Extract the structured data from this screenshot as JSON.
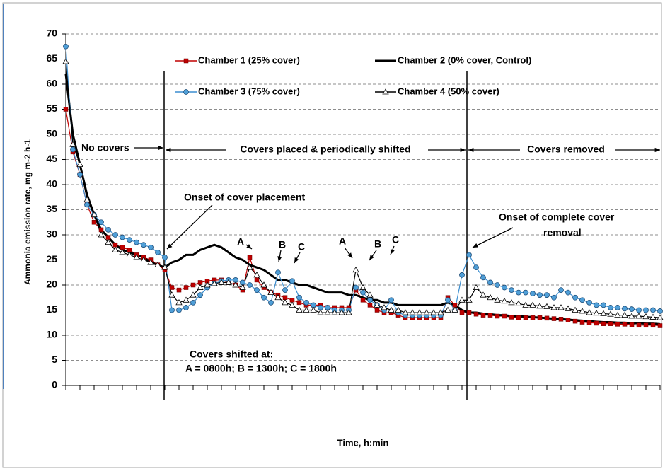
{
  "chart_data": {
    "type": "line",
    "x_label": "Time, h:min",
    "y_label": "Ammonia emission rate, mg m-2 h-1",
    "categories": [
      null,
      null,
      null,
      null,
      null,
      null,
      null,
      null,
      null,
      null,
      null,
      null,
      null,
      null,
      null,
      null,
      null,
      null,
      null,
      null,
      null,
      null,
      null,
      null,
      null,
      null,
      null,
      null,
      null,
      null,
      null,
      null,
      null,
      null,
      null,
      null,
      null,
      null,
      null,
      null,
      null,
      null,
      null,
      null,
      null,
      null,
      null,
      null,
      null,
      null,
      null,
      null,
      null,
      null,
      null,
      null,
      null,
      null,
      null,
      null,
      null,
      null,
      null,
      null,
      null,
      null,
      null,
      null,
      null,
      null,
      null,
      null,
      null,
      null,
      null,
      null,
      null,
      null,
      null,
      null,
      null,
      null,
      null,
      null,
      null
    ],
    "ylim": [
      0,
      70
    ],
    "yticks": [
      0,
      5,
      10,
      15,
      20,
      25,
      30,
      35,
      40,
      45,
      50,
      55,
      60,
      65,
      70
    ],
    "grid": true,
    "series": [
      {
        "name": "Chamber 1 (25% cover)",
        "color": "#c00000",
        "marker": "square",
        "values": [
          55,
          46.5,
          42,
          36,
          32.5,
          31,
          29.5,
          28,
          27.5,
          27,
          26,
          25.5,
          25,
          24,
          23,
          19.5,
          19,
          19.5,
          20,
          20.5,
          20.8,
          21,
          21,
          20.5,
          20,
          19,
          25.5,
          21,
          19.5,
          18.5,
          18,
          17.5,
          17,
          16.5,
          16,
          16,
          16,
          15.5,
          15.5,
          15.5,
          15.5,
          19,
          17,
          16,
          15,
          14.5,
          14.5,
          14,
          13.5,
          13.5,
          13.5,
          13.5,
          13.5,
          13.5,
          17.5,
          16,
          14.5,
          14.5,
          14.2,
          14,
          14,
          13.8,
          13.8,
          13.6,
          13.5,
          13.5,
          13.5,
          13.5,
          13.4,
          13.3,
          13.2,
          13,
          12.8,
          12.6,
          12.5,
          12.4,
          12.3,
          12.3,
          12.2,
          12.2,
          12.1,
          12,
          12,
          12,
          11.9
        ]
      },
      {
        "name": "Chamber 2 (0% cover, Control)",
        "color": "#000000",
        "marker": "none",
        "values": [
          62,
          50,
          44,
          38,
          34,
          31,
          29.5,
          28,
          27,
          26.5,
          26,
          25.5,
          24.5,
          24,
          23.5,
          24.5,
          25,
          26,
          26,
          27,
          27.5,
          28,
          27.5,
          26.5,
          25.5,
          25,
          24,
          23.5,
          23,
          22,
          21,
          21,
          20.5,
          20,
          20,
          19.5,
          19,
          18.5,
          18.5,
          18.5,
          18,
          18,
          17.5,
          17,
          17,
          16.5,
          16.5,
          16,
          16,
          16,
          16,
          16,
          16,
          16,
          16.5,
          16,
          15,
          14.5,
          14.5,
          14.3,
          14.2,
          14,
          14,
          13.8,
          13.8,
          13.7,
          13.6,
          13.5,
          13.4,
          13.3,
          13.2,
          13.1,
          13,
          12.9,
          12.8,
          12.7,
          12.6,
          12.6,
          12.5,
          12.5,
          12.4,
          12.4,
          12.3,
          12.3,
          12.2
        ]
      },
      {
        "name": "Chamber 3 (75% cover)",
        "color": "#1f6fb2",
        "marker": "circle",
        "values": [
          67.5,
          47,
          42,
          36,
          34,
          32.5,
          31,
          30,
          29.5,
          29,
          28.5,
          28,
          27.5,
          26.5,
          25.5,
          15,
          15,
          15.5,
          16.5,
          18,
          19.5,
          20.3,
          20.8,
          21,
          21,
          20.5,
          20,
          19,
          17.5,
          16.5,
          22.5,
          19,
          20.8,
          17.5,
          16.5,
          16,
          15.5,
          15.5,
          15,
          15,
          15,
          19.5,
          18.5,
          17,
          16,
          15,
          17,
          14.5,
          14,
          14,
          14,
          14,
          14,
          14,
          17,
          15,
          22,
          26,
          23.5,
          21.5,
          20.5,
          20,
          19.5,
          19,
          18.5,
          18.5,
          18.3,
          18,
          18,
          17.5,
          19,
          18.5,
          17.5,
          17,
          16.5,
          16,
          16,
          15.5,
          15.5,
          15.3,
          15.2,
          15,
          15,
          15,
          14.8
        ]
      },
      {
        "name": "Chamber 4 (50% cover)",
        "color": "#000000",
        "marker": "triangle",
        "values": [
          64.5,
          48,
          44,
          37,
          34,
          30,
          28.5,
          27,
          26.5,
          26,
          25.5,
          25,
          24.5,
          24,
          23.5,
          18,
          16.5,
          17,
          18,
          19.5,
          20,
          20.3,
          20.5,
          20.5,
          20,
          19.5,
          23.5,
          22,
          20,
          18.5,
          17.5,
          16.5,
          16,
          15,
          15,
          15,
          14.5,
          14.5,
          14.5,
          14.5,
          14.5,
          23,
          19.5,
          18,
          16,
          15.5,
          15,
          15,
          14.5,
          14.5,
          14.5,
          14.5,
          14.5,
          14.5,
          15,
          15,
          17,
          17,
          19.5,
          18,
          17.5,
          17,
          16.8,
          16.5,
          16.3,
          16,
          16,
          15.8,
          15.7,
          15.5,
          15.5,
          15.3,
          15,
          14.8,
          14.5,
          14.4,
          14.3,
          14.2,
          14,
          14,
          13.8,
          13.8,
          13.7,
          13.6,
          13.5
        ]
      }
    ],
    "annotations": [
      "No covers",
      "Covers placed & periodically shifted",
      "Covers removed",
      "Onset of cover placement",
      "Onset of complete cover",
      "removal",
      "A",
      "B",
      "C",
      "A",
      "B",
      "C",
      "Covers shifted at:",
      "A = 0800h; B = 1300h; C = 1800h"
    ]
  }
}
